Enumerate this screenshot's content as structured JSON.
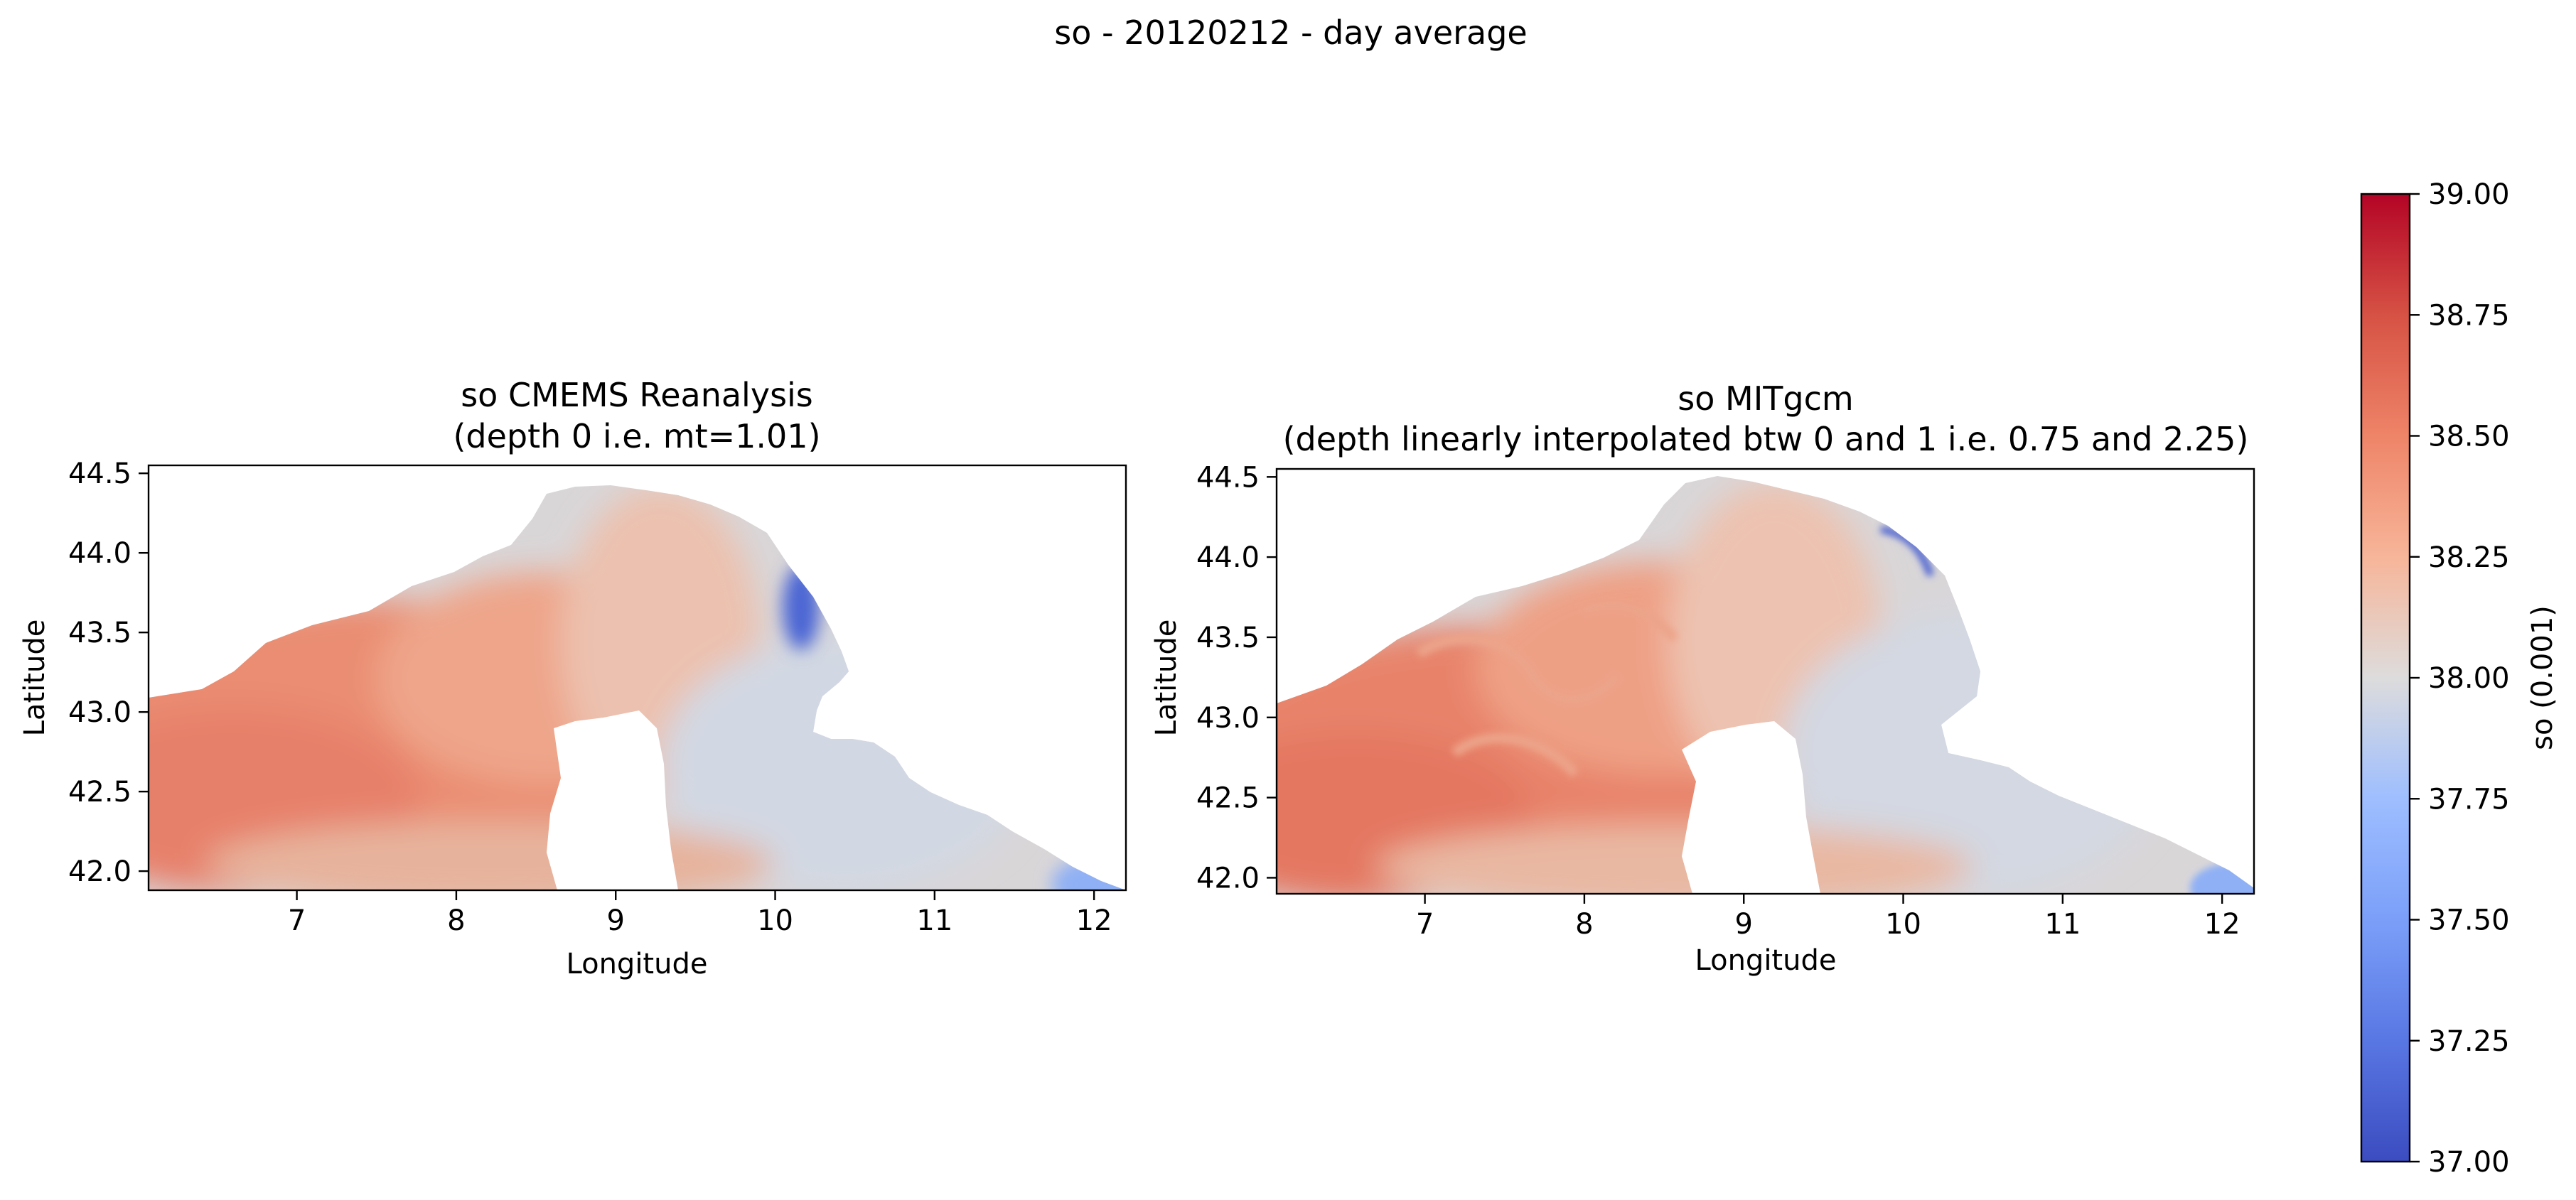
{
  "figure": {
    "suptitle": "so - 20120212 - day average"
  },
  "chart_data": [
    {
      "type": "heatmap",
      "title": "so CMEMS Reanalysis",
      "subtitle": "(depth 0 i.e. mt=1.01)",
      "xlabel": "Longitude",
      "ylabel": "Latitude",
      "xlim": [
        6.07,
        12.2
      ],
      "ylim": [
        41.88,
        44.55
      ],
      "xticks": [
        7,
        8,
        9,
        10,
        11,
        12
      ],
      "xtick_labels": [
        "7",
        "8",
        "9",
        "10",
        "11",
        "12"
      ],
      "yticks": [
        42.0,
        42.5,
        43.0,
        43.5,
        44.0,
        44.5
      ],
      "ytick_labels": [
        "42.0",
        "42.5",
        "43.0",
        "43.5",
        "44.0",
        "44.5"
      ],
      "grid": false,
      "colormap": "coolwarm",
      "vmin": 37.0,
      "vmax": 39.0,
      "features": {
        "saltier_west": {
          "approx_value": 38.45
        },
        "fresher_east": {
          "approx_value": 37.98
        },
        "coastal_low_near_10.3E_43.6N": {
          "approx_value": 37.2
        },
        "southeast_edge_near_12E_42N": {
          "approx_value": 37.75
        }
      }
    },
    {
      "type": "heatmap",
      "title": "so MITgcm",
      "subtitle": "(depth linearly interpolated btw 0 and 1 i.e. 0.75 and 2.25)",
      "xlabel": "Longitude",
      "ylabel": "Latitude",
      "xlim": [
        6.07,
        12.2
      ],
      "ylim": [
        41.9,
        44.55
      ],
      "xticks": [
        7,
        8,
        9,
        10,
        11,
        12
      ],
      "xtick_labels": [
        "7",
        "8",
        "9",
        "10",
        "11",
        "12"
      ],
      "yticks": [
        42.0,
        42.5,
        43.0,
        43.5,
        44.0,
        44.5
      ],
      "ytick_labels": [
        "42.0",
        "42.5",
        "43.0",
        "43.5",
        "44.0",
        "44.5"
      ],
      "grid": false,
      "colormap": "coolwarm",
      "vmin": 37.0,
      "vmax": 39.0,
      "features": {
        "saltier_west": {
          "approx_value": 38.5
        },
        "fresher_east": {
          "approx_value": 37.98
        },
        "coastal_low_near_10E_44N": {
          "approx_value": 37.1
        },
        "southeast_edge_near_12E_42N": {
          "approx_value": 37.75
        }
      }
    }
  ],
  "colorbar": {
    "label": "so (0.001)",
    "vmin": 37.0,
    "vmax": 39.0,
    "ticks": [
      37.0,
      37.25,
      37.5,
      37.75,
      38.0,
      38.25,
      38.5,
      38.75,
      39.0
    ],
    "tick_labels": [
      "37.00",
      "37.25",
      "37.50",
      "37.75",
      "38.00",
      "38.25",
      "38.50",
      "38.75",
      "39.00"
    ],
    "colors": {
      "low": "#3b4cc0",
      "mid_low": "#aac7fd",
      "mid": "#dddcdc",
      "mid_high": "#f7b599",
      "high": "#b40426"
    }
  }
}
